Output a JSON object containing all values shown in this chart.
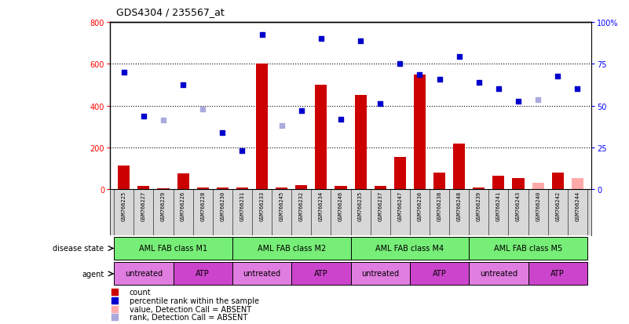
{
  "title": "GDS4304 / 235567_at",
  "samples": [
    "GSM766225",
    "GSM766227",
    "GSM766229",
    "GSM766226",
    "GSM766228",
    "GSM766230",
    "GSM766231",
    "GSM766233",
    "GSM766245",
    "GSM766232",
    "GSM766234",
    "GSM766246",
    "GSM766235",
    "GSM766237",
    "GSM766247",
    "GSM766236",
    "GSM766238",
    "GSM766248",
    "GSM766239",
    "GSM766241",
    "GSM766243",
    "GSM766240",
    "GSM766242",
    "GSM766244"
  ],
  "count_values": [
    115,
    15,
    5,
    75,
    10,
    10,
    10,
    600,
    10,
    20,
    500,
    15,
    450,
    15,
    155,
    550,
    80,
    220,
    10,
    65,
    55,
    30,
    80,
    55
  ],
  "count_absent": [
    false,
    false,
    false,
    false,
    false,
    false,
    false,
    false,
    false,
    false,
    false,
    false,
    false,
    false,
    false,
    false,
    false,
    false,
    false,
    false,
    false,
    true,
    false,
    true
  ],
  "percentile_values": [
    560,
    350,
    330,
    500,
    385,
    270,
    185,
    740,
    305,
    375,
    720,
    335,
    710,
    410,
    600,
    550,
    525,
    635,
    510,
    480,
    420,
    430,
    540,
    480
  ],
  "percentile_absent": [
    false,
    false,
    true,
    false,
    true,
    false,
    false,
    false,
    true,
    false,
    false,
    false,
    false,
    false,
    false,
    false,
    false,
    false,
    false,
    false,
    false,
    true,
    false,
    false
  ],
  "disease_state_groups": [
    {
      "label": "AML FAB class M1",
      "start": 0,
      "end": 6
    },
    {
      "label": "AML FAB class M2",
      "start": 6,
      "end": 12
    },
    {
      "label": "AML FAB class M4",
      "start": 12,
      "end": 18
    },
    {
      "label": "AML FAB class M5",
      "start": 18,
      "end": 24
    }
  ],
  "agent_groups": [
    {
      "label": "untreated",
      "start": 0,
      "end": 3,
      "color": "#e07de0"
    },
    {
      "label": "ATP",
      "start": 3,
      "end": 6,
      "color": "#cc44cc"
    },
    {
      "label": "untreated",
      "start": 6,
      "end": 9,
      "color": "#e07de0"
    },
    {
      "label": "ATP",
      "start": 9,
      "end": 12,
      "color": "#cc44cc"
    },
    {
      "label": "untreated",
      "start": 12,
      "end": 15,
      "color": "#e07de0"
    },
    {
      "label": "ATP",
      "start": 15,
      "end": 18,
      "color": "#cc44cc"
    },
    {
      "label": "untreated",
      "start": 18,
      "end": 21,
      "color": "#e07de0"
    },
    {
      "label": "ATP",
      "start": 21,
      "end": 24,
      "color": "#cc44cc"
    }
  ],
  "ylim_left": [
    0,
    800
  ],
  "ylim_right": [
    0,
    100
  ],
  "yticks_left": [
    0,
    200,
    400,
    600,
    800
  ],
  "yticks_right": [
    0,
    25,
    50,
    75,
    100
  ],
  "bar_color_present": "#cc0000",
  "bar_color_absent": "#ffaaaa",
  "dot_color_present": "#0000cc",
  "dot_color_absent": "#aaaadd",
  "disease_state_color": "#77ee77",
  "legend_items": [
    {
      "color": "#cc0000",
      "label": "count"
    },
    {
      "color": "#0000cc",
      "label": "percentile rank within the sample"
    },
    {
      "color": "#ffaaaa",
      "label": "value, Detection Call = ABSENT"
    },
    {
      "color": "#aaaadd",
      "label": "rank, Detection Call = ABSENT"
    }
  ]
}
